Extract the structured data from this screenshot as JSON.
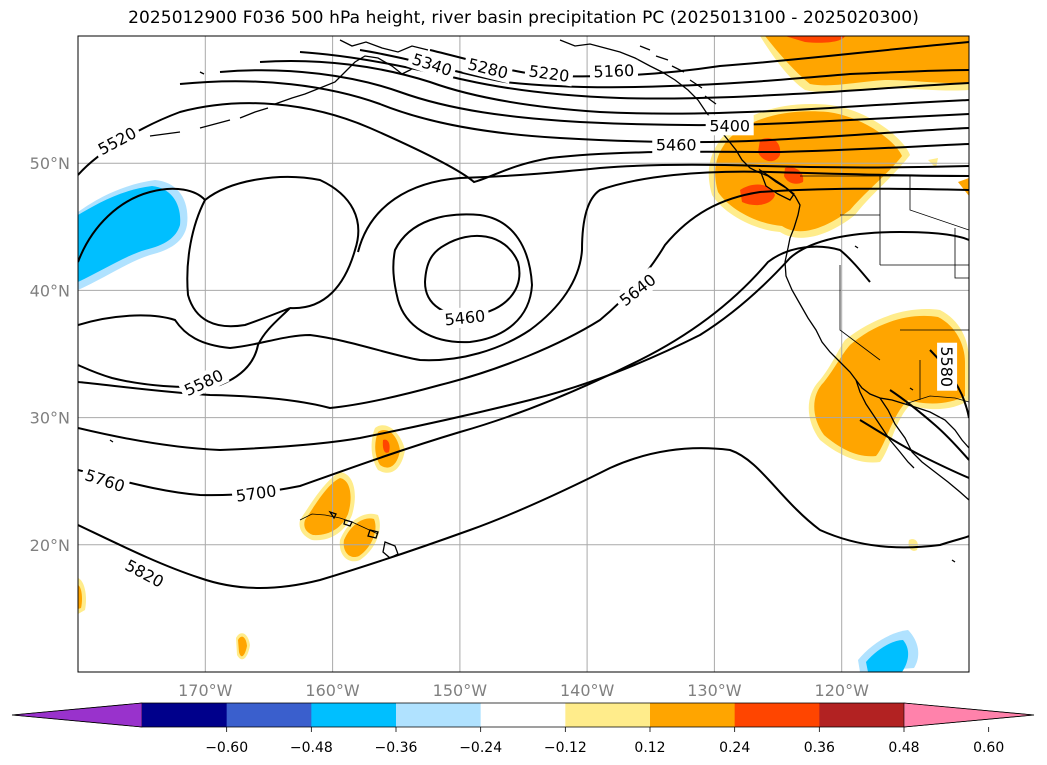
{
  "title": "2025012900 F036 500 hPa height, river basin precipitation PC (2025013100 - 2025020300)",
  "map": {
    "lon_range": [
      -180,
      -110
    ],
    "lat_range": [
      10,
      60
    ],
    "lat_labels": [
      {
        "lat": 50,
        "text": "50°N"
      },
      {
        "lat": 40,
        "text": "40°N"
      },
      {
        "lat": 30,
        "text": "30°N"
      },
      {
        "lat": 20,
        "text": "20°N"
      }
    ],
    "lon_labels": [
      {
        "lon": -170,
        "text": "170°W"
      },
      {
        "lon": -160,
        "text": "160°W"
      },
      {
        "lon": -150,
        "text": "150°W"
      },
      {
        "lon": -140,
        "text": "140°W"
      },
      {
        "lon": -130,
        "text": "130°W"
      },
      {
        "lon": -120,
        "text": "120°W"
      }
    ],
    "contour_labels": [
      {
        "text": "5160",
        "lon": -137.9,
        "lat": 57.2
      },
      {
        "text": "5220",
        "lon": -143.0,
        "lat": 57.0
      },
      {
        "text": "5280",
        "lon": -147.8,
        "lat": 57.4
      },
      {
        "text": "5340",
        "lon": -152.2,
        "lat": 57.7
      },
      {
        "text": "5400",
        "lon": -128.8,
        "lat": 52.9
      },
      {
        "text": "5460",
        "lon": -133.0,
        "lat": 51.4
      },
      {
        "text": "5460",
        "lon": -149.6,
        "lat": 37.8
      },
      {
        "text": "5520",
        "lon": -176.9,
        "lat": 51.7
      },
      {
        "text": "5580",
        "lon": -170.1,
        "lat": 32.7
      },
      {
        "text": "5580",
        "lon": -111.8,
        "lat": 34.0
      },
      {
        "text": "5640",
        "lon": -136.0,
        "lat": 40.0
      },
      {
        "text": "5700",
        "lon": -166.0,
        "lat": 24.0
      },
      {
        "text": "5760",
        "lon": -177.9,
        "lat": 25.0
      },
      {
        "text": "5820",
        "lon": -174.8,
        "lat": 17.7
      }
    ]
  },
  "colorbar": {
    "colors": [
      "#9932CC",
      "#00008B",
      "#3A5FCD",
      "#00BFFF",
      "#B0E2FF",
      "#FFFFFF",
      "#FFEC8B",
      "#FFA500",
      "#FF4500",
      "#B22222",
      "#FF82AB"
    ],
    "ticks": [
      "−0.60",
      "−0.48",
      "−0.36",
      "−0.24",
      "−0.12",
      "0.12",
      "0.24",
      "0.36",
      "0.48",
      "0.60"
    ]
  }
}
